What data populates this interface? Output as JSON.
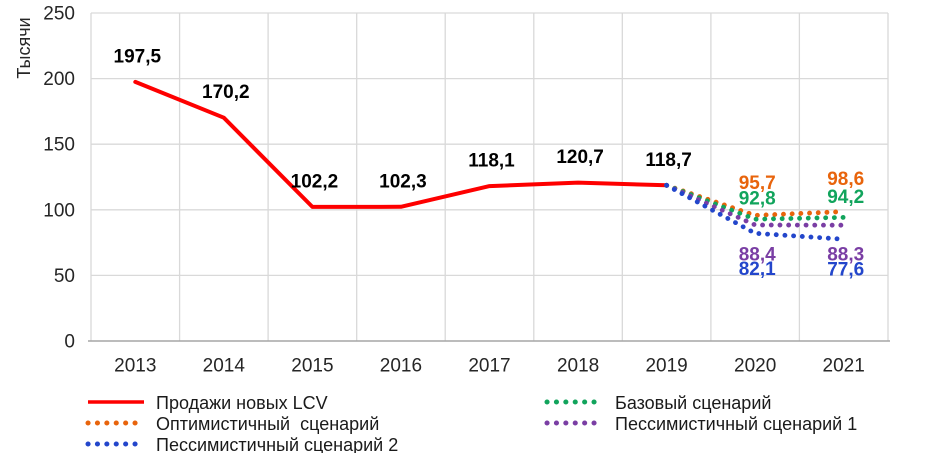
{
  "chart_data": {
    "type": "line",
    "title": "",
    "xlabel": "",
    "ylabel": "Тысячи",
    "ylim": [
      0,
      250
    ],
    "yticks": [
      0,
      50,
      100,
      150,
      200,
      250
    ],
    "categories": [
      "2013",
      "2014",
      "2015",
      "2016",
      "2017",
      "2018",
      "2019",
      "2020",
      "2021"
    ],
    "grid": true,
    "legend_position": "bottom",
    "colors": {
      "grid": "#D9D9D9",
      "axis": "#A6A6A6",
      "tick_text": "#262626",
      "legend_text": "#1A1A1A",
      "background": "#FFFFFF"
    },
    "series": [
      {
        "id": "sales-new-lcv",
        "name": "Продажи новых LCV",
        "style": "solid",
        "color": "#FE0000",
        "label_color": "#000000",
        "x": [
          "2013",
          "2014",
          "2015",
          "2016",
          "2017",
          "2018",
          "2019"
        ],
        "values": [
          197.5,
          170.2,
          102.2,
          102.3,
          118.1,
          120.7,
          118.7
        ],
        "labels": [
          "197,5",
          "170,2",
          "102,2",
          "102,3",
          "118,1",
          "120,7",
          "118,7"
        ],
        "label_dy": -25
      },
      {
        "id": "optimistic-scenario",
        "name": "Оптимистичный  сценарий",
        "style": "dotted",
        "color": "#E8640C",
        "label_color": "#E8640C",
        "x": [
          "2019",
          "2020",
          "2021"
        ],
        "values": [
          118.7,
          95.7,
          98.6
        ],
        "labels": [
          "",
          "95,7",
          "98,6"
        ],
        "label_dy": -32
      },
      {
        "id": "base-scenario",
        "name": "Базовый сценарий",
        "style": "dotted",
        "color": "#11A45C",
        "label_color": "#11A45C",
        "x": [
          "2019",
          "2020",
          "2021"
        ],
        "values": [
          118.7,
          92.8,
          94.2
        ],
        "labels": [
          "",
          "92,8",
          "94,2"
        ],
        "label_dy": -20
      },
      {
        "id": "pessimistic-scenario-1",
        "name": "Пессимистичный сценарий 1",
        "style": "dotted",
        "color": "#7A3EA4",
        "label_color": "#7A3EA4",
        "x": [
          "2019",
          "2020",
          "2021"
        ],
        "values": [
          118.7,
          88.4,
          88.3
        ],
        "labels": [
          "",
          "88,4",
          "88,3"
        ],
        "label_dy": 30
      },
      {
        "id": "pessimistic-scenario-2",
        "name": "Пессимистичный сценарий 2",
        "style": "dotted",
        "color": "#2346CB",
        "label_color": "#2346CB",
        "x": [
          "2019",
          "2020",
          "2021"
        ],
        "values": [
          118.7,
          82.1,
          77.6
        ],
        "labels": [
          "",
          "82,1",
          "77,6"
        ],
        "label_dy": [
          0,
          36,
          31
        ]
      }
    ],
    "legend_rows": [
      [
        0,
        2
      ],
      [
        1,
        3
      ],
      [
        4
      ]
    ]
  }
}
